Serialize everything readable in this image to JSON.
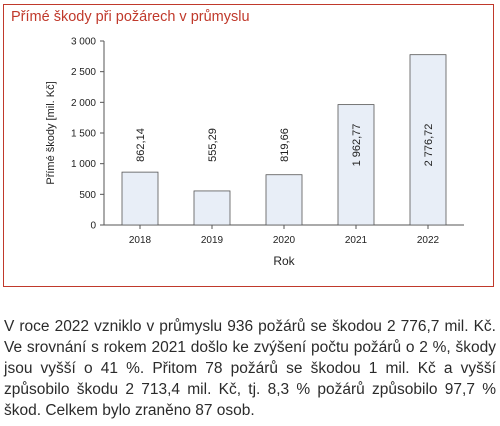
{
  "chart_data": {
    "type": "bar",
    "title": "Přímé škody při požárech v průmyslu",
    "categories": [
      "2018",
      "2019",
      "2020",
      "2021",
      "2022"
    ],
    "values": [
      862.14,
      555.29,
      819.66,
      1962.77,
      2776.72
    ],
    "value_labels": [
      "862,14",
      "555,29",
      "819,66",
      "1 962,77",
      "2 776,72"
    ],
    "xlabel": "Rok",
    "ylabel": "Přímé škody [mil. Kč]",
    "ylim": [
      0,
      3000
    ],
    "yticks": [
      0,
      500,
      1000,
      1500,
      2000,
      2500,
      3000
    ],
    "ytick_labels": [
      "0",
      "500",
      "1 000",
      "1 500",
      "2 000",
      "2 500",
      "3 000"
    ],
    "bar_color": "#e8eef7",
    "bar_edge_color": "#555555",
    "grid": false,
    "legend": "none"
  },
  "caption": "V roce 2022 vzniklo v průmyslu 936 požárů se škodou 2 776,7 mil. Kč. Ve srovnání s rokem 2021 došlo ke zvýšení počtu požárů o 2 %, škody jsou vyšší o 41 %. Přitom 78 požárů se škodou 1 mil. Kč a vyšší způsobilo škodu 2 713,4 mil. Kč, tj. 8,3 % požárů způsobilo 97,7 % škod. Celkem bylo zraněno 87 osob.",
  "colors": {
    "frame": "#c0392b",
    "title": "#c0392b"
  }
}
